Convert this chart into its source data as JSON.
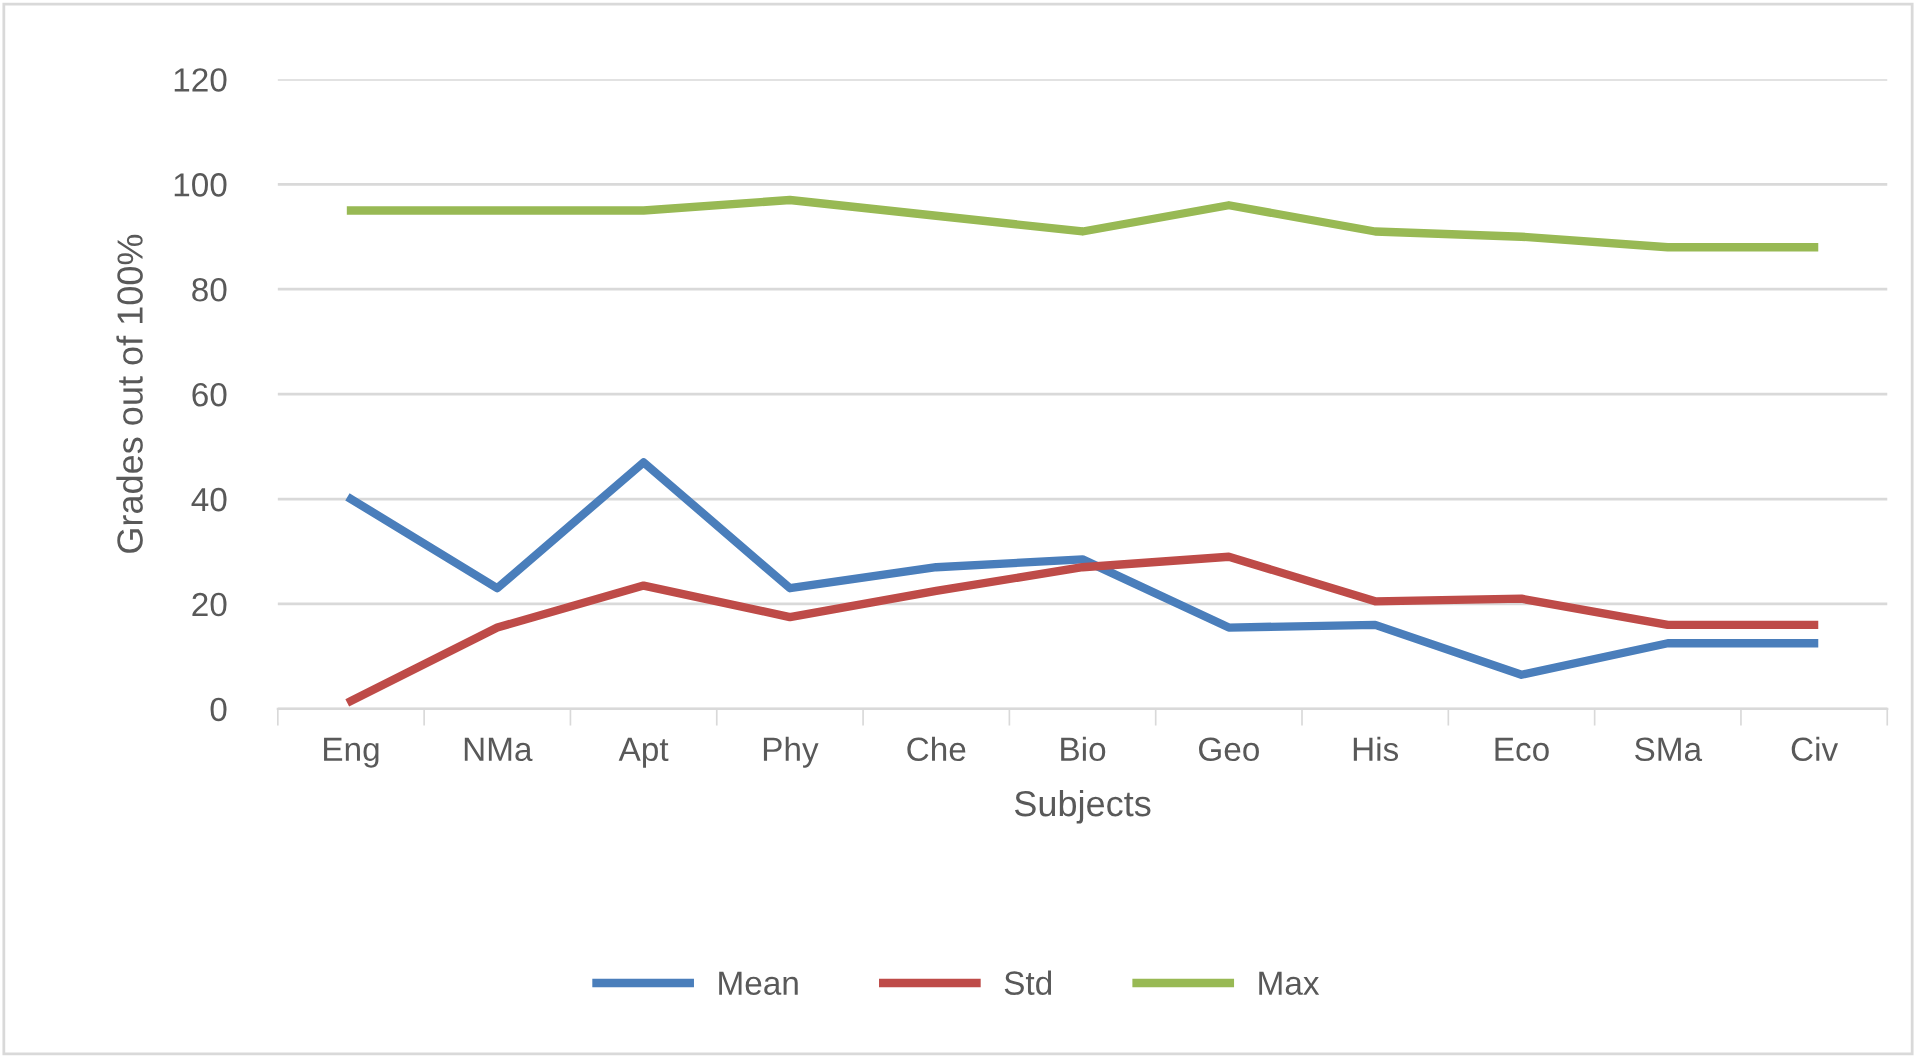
{
  "chart_data": {
    "type": "line",
    "xlabel": "Subjects",
    "ylabel": "Grades out of 100%",
    "categories": [
      "Eng",
      "NMa",
      "Apt",
      "Phy",
      "Che",
      "Bio",
      "Geo",
      "His",
      "Eco",
      "SMa",
      "Civ"
    ],
    "series": [
      {
        "name": "Mean",
        "color": "#4a7ebb",
        "values": [
          40,
          23,
          47,
          23,
          27,
          28.5,
          15.5,
          16,
          6.5,
          12.5,
          12.5
        ]
      },
      {
        "name": "Std",
        "color": "#be4b48",
        "values": [
          1.5,
          15.5,
          23.5,
          17.5,
          22.5,
          27,
          29,
          20.5,
          21,
          16,
          16
        ]
      },
      {
        "name": "Max",
        "color": "#98b954",
        "values": [
          95,
          95,
          95,
          97,
          94,
          91,
          96,
          91,
          90,
          88,
          88
        ]
      }
    ],
    "ylim": [
      0,
      120
    ],
    "yticks": [
      0,
      20,
      40,
      60,
      80,
      100,
      120
    ],
    "grid": "y",
    "legend": "bottom"
  }
}
